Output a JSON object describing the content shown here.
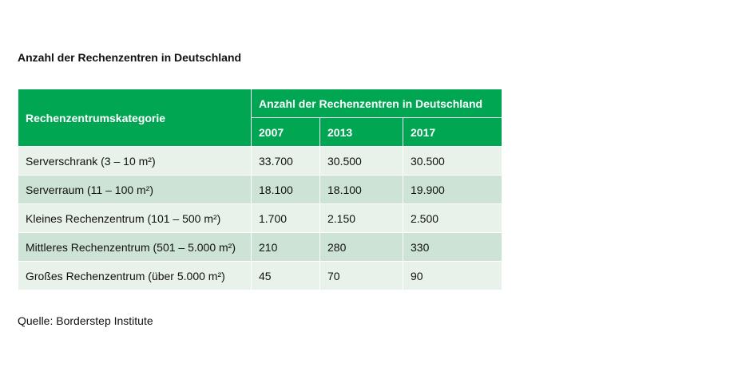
{
  "title": "Anzahl der Rechenzentren in Deutschland",
  "table": {
    "category_header": "Rechenzentrumskategorie",
    "group_header": "Anzahl der Rechenzentren in Deutschland",
    "years": [
      "2007",
      "2013",
      "2017"
    ],
    "rows": [
      {
        "category": "Serverschrank (3 – 10 m²)",
        "values": [
          "33.700",
          "30.500",
          "30.500"
        ]
      },
      {
        "category": "Serverraum (11 – 100 m²)",
        "values": [
          "18.100",
          "18.100",
          "19.900"
        ]
      },
      {
        "category": "Kleines Rechenzentrum (101 – 500 m²)",
        "values": [
          "1.700",
          "2.150",
          "2.500"
        ]
      },
      {
        "category": "Mittleres Rechenzentrum (501 – 5.000 m²)",
        "values": [
          "210",
          "280",
          "330"
        ]
      },
      {
        "category": "Großes Rechenzentrum (über 5.000 m²)",
        "values": [
          "45",
          "70",
          "90"
        ]
      }
    ]
  },
  "source": "Quelle: Borderstep Institute",
  "colors": {
    "header_green": "#00a651",
    "row_light": "#e8f1ea",
    "row_dark": "#cde3d5"
  }
}
